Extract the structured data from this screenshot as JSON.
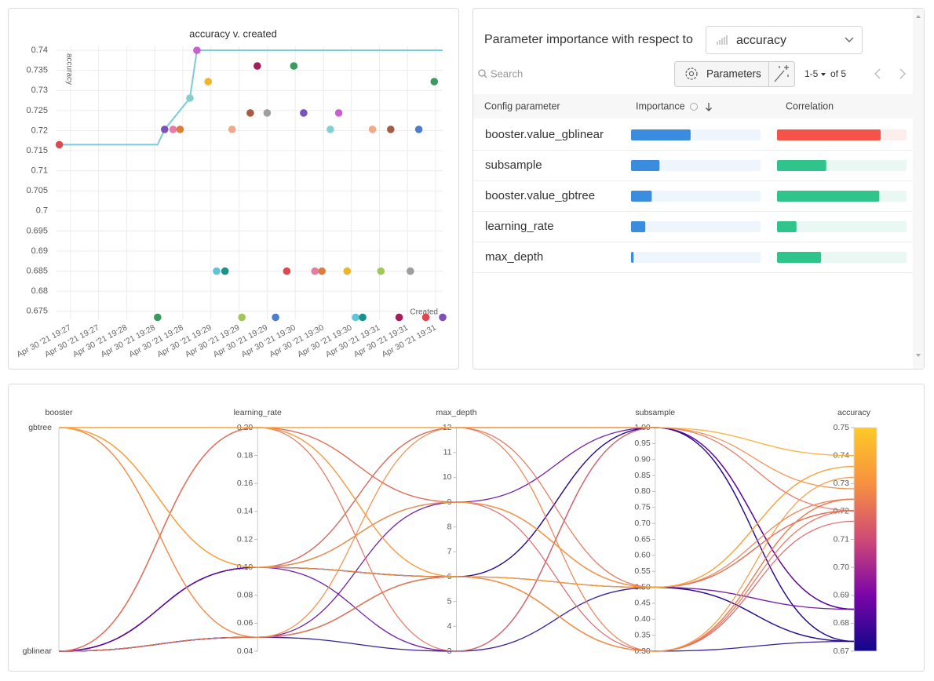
{
  "chart_data": [
    {
      "type": "scatter",
      "title": "accuracy v. created",
      "xlabel": "Created",
      "ylabel": "accuracy",
      "x": [
        1632,
        1702,
        1707,
        1713,
        1718,
        1725,
        1730,
        1738,
        1744,
        1750,
        1755,
        1762,
        1768,
        1773,
        1780,
        1786,
        1794,
        1799,
        1806,
        1814,
        1819,
        1825,
        1831,
        1837,
        1843,
        1848,
        1855,
        1861,
        1868,
        1874,
        1882,
        1888,
        1893,
        1899,
        1905
      ],
      "values": [
        0.7165,
        0.6735,
        0.7203,
        0.7203,
        0.7203,
        0.7281,
        0.74,
        0.7322,
        0.685,
        0.685,
        0.7203,
        0.6735,
        0.7244,
        0.7361,
        0.7244,
        0.6735,
        0.685,
        0.7361,
        0.7244,
        0.685,
        0.685,
        0.7203,
        0.7244,
        0.685,
        0.6735,
        0.6735,
        0.7203,
        0.685,
        0.7203,
        0.6735,
        0.685,
        0.7203,
        0.6735,
        0.7322,
        0.6735
      ],
      "palette": [
        "#e0474f",
        "#3b9a5c",
        "#7b52b9",
        "#e57ca5",
        "#e07b39",
        "#85d0cf",
        "#c761cf",
        "#efb32e",
        "#5ec6db",
        "#1c9189",
        "#f0a98a",
        "#9fc75a",
        "#a65b44",
        "#a4205b",
        "#9e9e9e",
        "#4d7cd1"
      ],
      "line": {
        "x": [
          1632,
          1702,
          1707,
          1725,
          1730,
          1905
        ],
        "values": [
          0.7165,
          0.7165,
          0.7203,
          0.7281,
          0.74,
          0.74
        ],
        "color": "#7ccbd8"
      },
      "xlim": [
        1630,
        1905
      ],
      "ylim": [
        0.673,
        0.741
      ],
      "xticks": [
        {
          "value": 1640,
          "label": "Apr 30 '21 19:27"
        },
        {
          "value": 1660,
          "label": "Apr 30 '21 19:27"
        },
        {
          "value": 1680,
          "label": "Apr 30 '21 19:28"
        },
        {
          "value": 1700,
          "label": "Apr 30 '21 19:28"
        },
        {
          "value": 1720,
          "label": "Apr 30 '21 19:28"
        },
        {
          "value": 1740,
          "label": "Apr 30 '21 19:29"
        },
        {
          "value": 1760,
          "label": "Apr 30 '21 19:29"
        },
        {
          "value": 1780,
          "label": "Apr 30 '21 19:29"
        },
        {
          "value": 1800,
          "label": "Apr 30 '21 19:30"
        },
        {
          "value": 1820,
          "label": "Apr 30 '21 19:30"
        },
        {
          "value": 1840,
          "label": "Apr 30 '21 19:30"
        },
        {
          "value": 1860,
          "label": "Apr 30 '21 19:31"
        },
        {
          "value": 1880,
          "label": "Apr 30 '21 19:31"
        },
        {
          "value": 1900,
          "label": "Apr 30 '21 19:31"
        }
      ],
      "yticks": [
        0.675,
        0.68,
        0.685,
        0.69,
        0.695,
        0.7,
        0.705,
        0.71,
        0.715,
        0.72,
        0.725,
        0.73,
        0.735,
        0.74
      ],
      "grid": true
    },
    {
      "type": "parallel",
      "axes": [
        {
          "name": "booster",
          "categories": [
            "gbtree",
            "gblinear"
          ]
        },
        {
          "name": "learning_rate",
          "ylim": [
            0.04,
            0.2
          ],
          "yticks": [
            0.04,
            0.06,
            0.08,
            {
              "value": 0.1,
              "label": "0.10"
            },
            0.12,
            0.14,
            0.16,
            0.18,
            {
              "value": 0.2,
              "label": "0.20"
            }
          ]
        },
        {
          "name": "max_depth",
          "ylim": [
            3,
            12
          ],
          "yticks": [
            3,
            4,
            5,
            6,
            7,
            8,
            9,
            10,
            11,
            12
          ]
        },
        {
          "name": "subsample",
          "ylim": [
            0.3,
            1
          ],
          "yticks": [
            {
              "value": 0.3,
              "label": "0.30"
            },
            0.35,
            {
              "value": 0.4,
              "label": "0.40"
            },
            0.45,
            {
              "value": 0.5,
              "label": "0.50"
            },
            0.55,
            {
              "value": 0.6,
              "label": "0.60"
            },
            0.65,
            {
              "value": 0.7,
              "label": "0.70"
            },
            0.75,
            {
              "value": 0.8,
              "label": "0.80"
            },
            0.85,
            {
              "value": 0.9,
              "label": "0.90"
            },
            0.95,
            {
              "value": 1,
              "label": "1.00"
            }
          ]
        },
        {
          "name": "accuracy",
          "ylim": [
            0.67,
            0.75
          ],
          "yticks": [
            0.67,
            0.68,
            0.69,
            {
              "value": 0.7,
              "label": "0.70"
            },
            0.71,
            0.72,
            0.73,
            0.74,
            0.75
          ]
        }
      ],
      "runs": [
        [
          "gblinear",
          0.1,
          3,
          1,
          0.685
        ],
        [
          "gblinear",
          0.05,
          6,
          1,
          0.6735
        ],
        [
          "gblinear",
          0.05,
          3,
          0.5,
          0.6735
        ],
        [
          "gblinear",
          0.1,
          6,
          0.3,
          0.6735
        ],
        [
          "gblinear",
          0.05,
          9,
          1,
          0.685
        ],
        [
          "gblinear",
          0.1,
          6,
          1,
          0.6735
        ],
        [
          "gblinear",
          0.05,
          6,
          0.5,
          0.6735
        ],
        [
          "gblinear",
          0.1,
          9,
          0.5,
          0.685
        ],
        [
          "gblinear",
          0.1,
          12,
          1,
          0.685
        ],
        [
          "gblinear",
          0.2,
          9,
          0.3,
          0.7165
        ],
        [
          "gblinear",
          0.2,
          6,
          0.3,
          0.7203
        ],
        [
          "gblinear",
          0.2,
          12,
          0.5,
          0.7203
        ],
        [
          "gblinear",
          0.2,
          3,
          1,
          0.7203
        ],
        [
          "gblinear",
          0.05,
          6,
          0.3,
          0.7244
        ],
        [
          "gbtree",
          0.2,
          9,
          0.5,
          0.7203
        ],
        [
          "gbtree",
          0.05,
          6,
          0.5,
          0.7244
        ],
        [
          "gbtree",
          0.1,
          12,
          0.3,
          0.7244
        ],
        [
          "gbtree",
          0.05,
          12,
          1,
          0.7281
        ],
        [
          "gbtree",
          0.1,
          6,
          0.3,
          0.7322
        ],
        [
          "gbtree",
          0.1,
          9,
          0.5,
          0.7361
        ],
        [
          "gbtree",
          0.2,
          6,
          0.5,
          0.7361
        ],
        [
          "gbtree",
          0.2,
          12,
          1,
          0.74
        ]
      ],
      "colormap": [
        "#10078a",
        "#7a05a8",
        "#cf4a75",
        "#f7913f",
        "#fdca26"
      ]
    }
  ],
  "importance_panel": {
    "title": "Parameter importance with respect to",
    "metric": "accuracy",
    "search_placeholder": "Search",
    "button": "Parameters",
    "page_range": "1-5",
    "page_total": "of 5",
    "columns": [
      "Config parameter",
      "Importance",
      "Correlation"
    ],
    "rows": [
      {
        "name": "booster.value_gblinear",
        "importance": 0.46,
        "correlation": -0.8
      },
      {
        "name": "subsample",
        "importance": 0.22,
        "correlation": 0.38
      },
      {
        "name": "booster.value_gbtree",
        "importance": 0.16,
        "correlation": 0.79
      },
      {
        "name": "learning_rate",
        "importance": 0.11,
        "correlation": 0.15
      },
      {
        "name": "max_depth",
        "importance": 0.02,
        "correlation": 0.34
      }
    ],
    "importance_color": "#3a8dde",
    "positive_color": "#2ec48b",
    "negative_color": "#f5524a"
  }
}
